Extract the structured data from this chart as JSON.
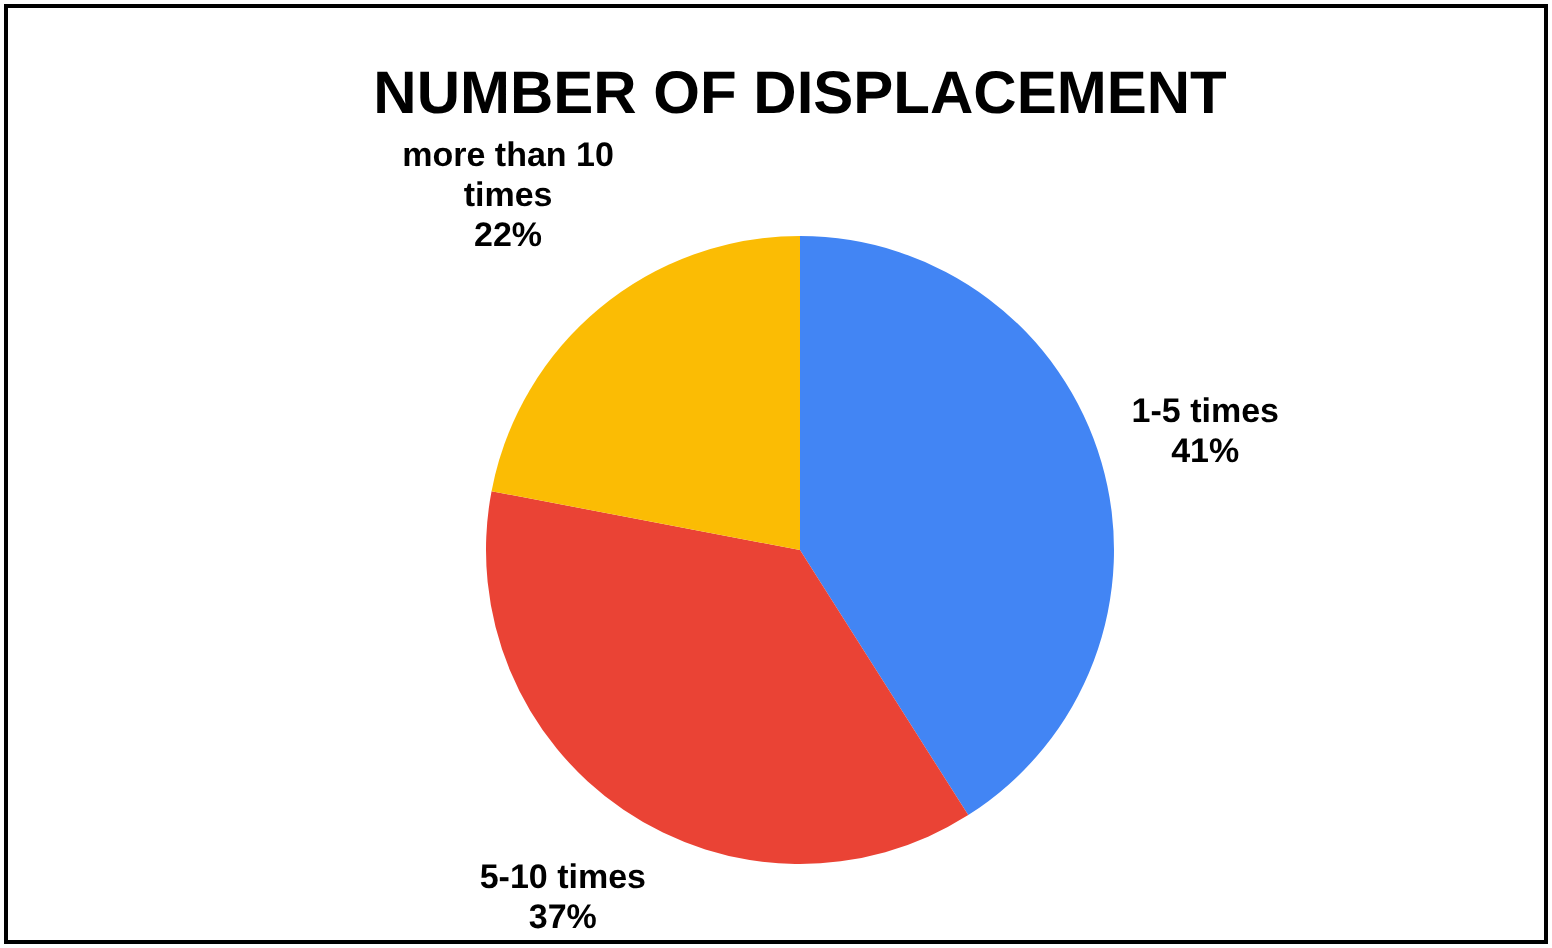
{
  "chart_data": {
    "type": "pie",
    "title": "NUMBER OF DISPLACEMENT",
    "categories": [
      "1-5 times",
      "5-10 times",
      "more than 10 times"
    ],
    "values": [
      41,
      37,
      22
    ],
    "value_labels": [
      "41%",
      "37%",
      "22%"
    ],
    "colors": [
      "#4285f4",
      "#ea4335",
      "#fbbc04"
    ]
  }
}
